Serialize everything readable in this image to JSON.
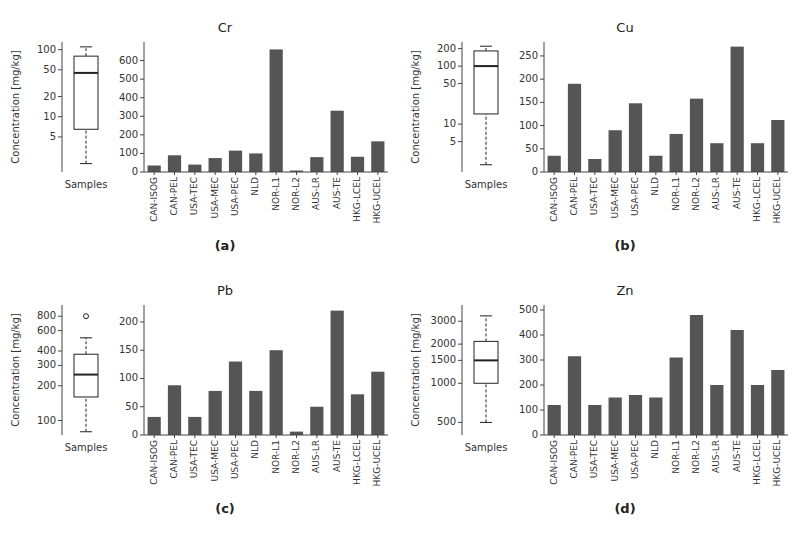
{
  "chart_data": [
    {
      "type": "box",
      "title": "Cr",
      "annotation": "(a)",
      "y_label": "Concentration [mg/kg]",
      "x_label": "Samples",
      "whisker_low": 2,
      "q1": 6.5,
      "median": 45,
      "q3": 80,
      "whisker_high": 110,
      "outliers": [],
      "ylim": [
        1.5,
        130
      ],
      "yticks": [
        5,
        10,
        20,
        50,
        100
      ],
      "log": "y",
      "tick_labels": "y",
      "grid": false,
      "color": "#222222"
    },
    {
      "type": "bar",
      "categories": [
        "CAN-ISOG",
        "CAN-PEL",
        "USA-TEC",
        "USA-MEC",
        "USA-PEC",
        "NLD",
        "NOR-L1",
        "NOR-L2",
        "AUS-LR",
        "AUS-TE",
        "HKG-LCEL",
        "HKG-UCEL"
      ],
      "values": [
        35,
        90,
        40,
        75,
        115,
        100,
        660,
        8,
        80,
        330,
        82,
        165
      ],
      "color": "#555555",
      "ylim": [
        0,
        700
      ],
      "yticks": [
        0,
        100,
        200,
        300,
        400,
        500,
        600
      ],
      "grid": false
    },
    {
      "type": "box",
      "title": "Cu",
      "annotation": "(b)",
      "y_label": "Concentration [mg/kg]",
      "x_label": "Samples",
      "whisker_low": 2,
      "q1": 15,
      "median": 100,
      "q3": 182.5,
      "whisker_high": 220,
      "outliers": [],
      "ylim": [
        1.5,
        260
      ],
      "yticks": [
        5,
        10,
        50,
        100,
        200
      ],
      "log": "y",
      "tick_labels": "y",
      "grid": false,
      "color": "#222222"
    },
    {
      "type": "bar",
      "categories": [
        "CAN-ISOG",
        "CAN-PEL",
        "USA-TEC",
        "USA-MEC",
        "USA-PEC",
        "NLD",
        "NOR-L1",
        "NOR-L2",
        "AUS-LR",
        "AUS-TE",
        "HKG-LCEL",
        "HKG-UCEL"
      ],
      "values": [
        35,
        190,
        28,
        90,
        148,
        35,
        82,
        158,
        62,
        270,
        62,
        112
      ],
      "color": "#555555",
      "ylim": [
        0,
        280
      ],
      "yticks": [
        0,
        50,
        100,
        150,
        200,
        250
      ],
      "grid": false
    },
    {
      "type": "box",
      "title": "Pb",
      "annotation": "(c)",
      "y_label": "Concentration [mg/kg]",
      "x_label": "Samples",
      "whisker_low": 80,
      "q1": 160,
      "median": 250,
      "q3": 375,
      "whisker_high": 520,
      "outliers": [
        800
      ],
      "ylim": [
        75,
        1000
      ],
      "yticks": [
        100,
        200,
        300,
        400,
        600,
        800
      ],
      "log": "y",
      "tick_labels": "y",
      "grid": false,
      "color": "#222222"
    },
    {
      "type": "bar",
      "categories": [
        "CAN-ISOG",
        "CAN-PEL",
        "USA-TEC",
        "USA-MEC",
        "USA-PEC",
        "NLD",
        "NOR-L1",
        "NOR-L2",
        "AUS-LR",
        "AUS-TE",
        "HKG-LCEL",
        "HKG-UCEL"
      ],
      "values": [
        32,
        88,
        32,
        78,
        130,
        78,
        150,
        6,
        50,
        220,
        72,
        112
      ],
      "color": "#555555",
      "ylim": [
        0,
        230
      ],
      "yticks": [
        0,
        50,
        100,
        150,
        200
      ],
      "grid": false
    },
    {
      "type": "box",
      "title": "Zn",
      "annotation": "(d)",
      "y_label": "Concentration [mg/kg]",
      "x_label": "Samples",
      "whisker_low": 500,
      "q1": 1000,
      "median": 1500,
      "q3": 2100,
      "whisker_high": 3300,
      "outliers": [],
      "ylim": [
        400,
        4000
      ],
      "yticks": [
        500,
        1000,
        1500,
        2000,
        3000
      ],
      "log": "y",
      "tick_labels": "y",
      "grid": false,
      "color": "#222222"
    },
    {
      "type": "bar",
      "categories": [
        "CAN-ISOG",
        "CAN-PEL",
        "USA-TEC",
        "USA-MEC",
        "USA-PEC",
        "NLD",
        "NOR-L1",
        "NOR-L2",
        "AUS-LR",
        "AUS-TE",
        "HKG-LCEL",
        "HKG-UCEL"
      ],
      "values": [
        120,
        315,
        120,
        150,
        160,
        150,
        310,
        480,
        200,
        420,
        200,
        260
      ],
      "color": "#555555",
      "ylim": [
        0,
        520
      ],
      "yticks": [
        0,
        100,
        200,
        300,
        400,
        500
      ],
      "grid": false
    }
  ]
}
